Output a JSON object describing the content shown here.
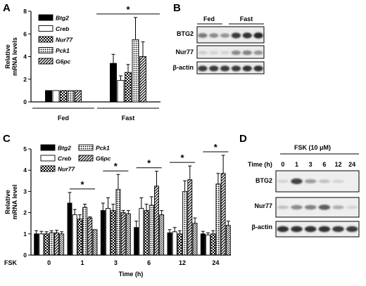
{
  "panels": {
    "A": {
      "letter": "A"
    },
    "B": {
      "letter": "B",
      "cols": [
        "Fed",
        "Fast"
      ],
      "rows": [
        "BTG2",
        "Nur77",
        "β-actin"
      ]
    },
    "C": {
      "letter": "C",
      "fsk_label": "FSK"
    },
    "D": {
      "letter": "D",
      "treatment": "FSK (10 μM)",
      "time_label": "Time (h)",
      "times": [
        "0",
        "1",
        "3",
        "6",
        "12",
        "24"
      ],
      "rows": [
        "BTG2",
        "Nur77",
        "β-actin"
      ],
      "nur77_levels": [
        0.15,
        0.45,
        0.5,
        0.7,
        0.25,
        0.05
      ],
      "btg2_levels": [
        0.05,
        0.85,
        0.35,
        0.15,
        0.05,
        0.02
      ]
    }
  },
  "chart_data": [
    {
      "type": "bar",
      "panel": "A",
      "categories": [
        "Fed",
        "Fast"
      ],
      "series": [
        {
          "name": "Btg2",
          "values": [
            1,
            3.4
          ],
          "errors": [
            0,
            0.8
          ],
          "pattern": "solid"
        },
        {
          "name": "Creb",
          "values": [
            1,
            1.9
          ],
          "errors": [
            0,
            0.4
          ],
          "pattern": "white"
        },
        {
          "name": "Nur77",
          "values": [
            1,
            2.6
          ],
          "errors": [
            0,
            0.7
          ],
          "pattern": "check"
        },
        {
          "name": "Pck1",
          "values": [
            1,
            5.5
          ],
          "errors": [
            0,
            1.95
          ],
          "pattern": "dots"
        },
        {
          "name": "G6pc",
          "values": [
            1,
            4.0
          ],
          "errors": [
            0,
            1.3
          ],
          "pattern": "diag"
        }
      ],
      "ylabel": "Relative\nmRNA levels",
      "ylim": [
        0,
        8
      ],
      "yticks": [
        0,
        2,
        4,
        6,
        8
      ],
      "significance": [
        {
          "group": "Fast",
          "label": "*"
        }
      ],
      "legend_position": "top-left"
    },
    {
      "type": "bar",
      "panel": "C",
      "categories": [
        "0",
        "1",
        "3",
        "6",
        "12",
        "24"
      ],
      "series": [
        {
          "name": "Btg2",
          "values": [
            1.0,
            2.45,
            2.1,
            1.3,
            1.05,
            1.0
          ],
          "errors": [
            0.15,
            0.5,
            0.35,
            0.3,
            0.15,
            0.12
          ],
          "pattern": "solid"
        },
        {
          "name": "Creb",
          "values": [
            1.0,
            1.9,
            2.2,
            2.2,
            1.1,
            0.95
          ],
          "errors": [
            0.12,
            0.25,
            0.5,
            0.5,
            0.2,
            0.1
          ],
          "pattern": "white"
        },
        {
          "name": "Nur77",
          "values": [
            1.0,
            1.7,
            2.1,
            2.1,
            1.0,
            1.0
          ],
          "errors": [
            0.1,
            0.2,
            0.3,
            0.3,
            0.15,
            0.15
          ],
          "pattern": "check"
        },
        {
          "name": "Pck1",
          "values": [
            1.05,
            2.25,
            3.1,
            2.35,
            3.0,
            3.35
          ],
          "errors": [
            0.1,
            0.15,
            0.7,
            0.4,
            0.5,
            0.5
          ],
          "pattern": "dots"
        },
        {
          "name": "G6pc",
          "values": [
            1.05,
            1.75,
            2.0,
            3.25,
            3.55,
            3.85
          ],
          "errors": [
            0.12,
            0.05,
            0.1,
            0.7,
            0.65,
            0.85
          ],
          "pattern": "diag"
        },
        {
          "name": "",
          "values": [
            1.0,
            1.2,
            1.95,
            1.9,
            1.5,
            1.4
          ],
          "errors": [
            0.1,
            0.0,
            0.15,
            0.2,
            0.25,
            0.2
          ],
          "pattern": "hatch"
        }
      ],
      "legend": [
        "Btg2",
        "Creb",
        "Nur77",
        "Pck1",
        "G6pc"
      ],
      "xlabel": "Time (h)",
      "ylabel": "Relative\nmRNA level",
      "ylim": [
        0,
        5
      ],
      "yticks": [
        0,
        1,
        2,
        3,
        4,
        5
      ],
      "significance": [
        {
          "group": "1",
          "label": "*"
        },
        {
          "group": "3",
          "label": "*"
        },
        {
          "group": "6",
          "label": "*"
        },
        {
          "group": "12",
          "label": "*"
        },
        {
          "group": "24",
          "label": "*"
        }
      ],
      "legend_position": "top-left"
    }
  ]
}
